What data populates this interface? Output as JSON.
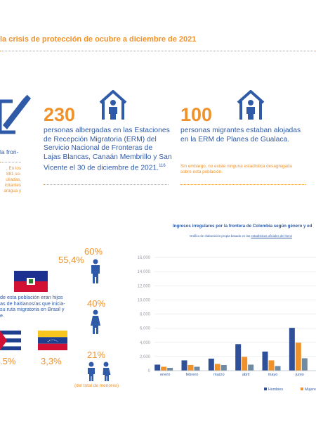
{
  "title": "la crisis de protección de ocubre a diciembre de 2021",
  "left_fragment": {
    "line1": "la fron-",
    "note_lines": [
      ". En los",
      "881 so-",
      "uliadas,",
      "icitantes",
      "aragua y"
    ]
  },
  "stat1": {
    "number": "230",
    "text_lines": [
      "personas albergadas en las Estaciones",
      "de Recepción Migratoria (ERM) del",
      "Servicio Nacional de Fronteras de",
      "Lajas Blancas, Canaán Membrillo y San",
      "Vicente el 30 de diciembre de 2021."
    ],
    "footnote": "116"
  },
  "stat2": {
    "number": "100",
    "text_lines": [
      "personas migrantes estaban alojadas",
      "en la ERM de Planes de Gualaca."
    ],
    "note_lines": [
      "Sin embargo, no existe ninguna estadística desagregada",
      "sobre esta población."
    ]
  },
  "flags": {
    "haiti_pct": "55,4%",
    "cuba_pct": ".5%",
    "venezuela_pct": "3,3%",
    "haiti_note_lines": [
      "de esta población eran hijos",
      "as de haitianos/as que inicia-",
      "su ruta migratoria en Brasil y",
      "e."
    ]
  },
  "people": {
    "men_pct": "60%",
    "women_pct": "40%",
    "children_pct": "21%",
    "children_note": "(del total de menores)"
  },
  "chart_data": {
    "type": "bar",
    "title": "Ingresos irregulares por la frontera de Colombia según género y ed",
    "subtitle_prefix": "Gráfico de elaboración propia basado en las ",
    "subtitle_link": "estadísticas oficiales del Servi",
    "categories": [
      "enero",
      "febrero",
      "marzo",
      "abril",
      "mayo",
      "junio"
    ],
    "series": [
      {
        "name": "Hombres",
        "color": "#2f4f98",
        "values": [
          850,
          1450,
          1700,
          3750,
          2700,
          6050
        ]
      },
      {
        "name": "Mujere",
        "color": "#f0922b",
        "values": [
          550,
          800,
          950,
          1950,
          1450,
          3950
        ]
      },
      {
        "name": "",
        "color": "#6f8aa3",
        "values": [
          400,
          550,
          800,
          850,
          650,
          1750
        ]
      }
    ],
    "y_ticks": [
      "16,000",
      "14,000",
      "12,000",
      "10,000",
      "8,000",
      "6,000",
      "4,000",
      "2,000",
      "0"
    ],
    "ylim": [
      0,
      16000
    ],
    "grid": true,
    "legend": "bottom"
  }
}
